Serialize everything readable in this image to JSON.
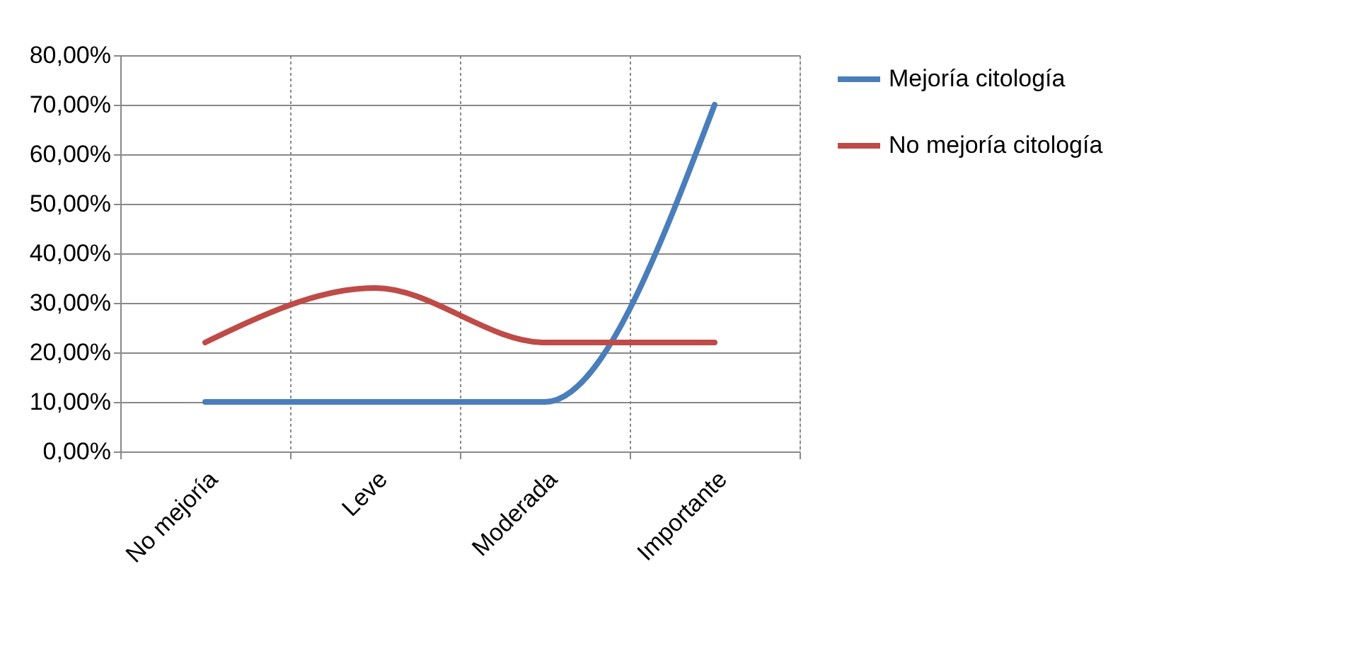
{
  "chart_data": {
    "type": "line",
    "categories": [
      "No mejoría",
      "Leve",
      "Moderada",
      "Importante"
    ],
    "series": [
      {
        "name": "Mejoría citología",
        "color": "#4a7ebb",
        "values": [
          10,
          10,
          10,
          70
        ]
      },
      {
        "name": "No mejoría citología",
        "color": "#be4b48",
        "values": [
          22,
          33,
          22,
          22
        ]
      }
    ],
    "ylim": [
      0,
      80
    ],
    "yticks": [
      {
        "value": 0,
        "label": "0,00%"
      },
      {
        "value": 10,
        "label": "10,00%"
      },
      {
        "value": 20,
        "label": "20,00%"
      },
      {
        "value": 30,
        "label": "30,00%"
      },
      {
        "value": 40,
        "label": "40,00%"
      },
      {
        "value": 50,
        "label": "50,00%"
      },
      {
        "value": 60,
        "label": "60,00%"
      },
      {
        "value": 70,
        "label": "70,00%"
      },
      {
        "value": 80,
        "label": "80,00%"
      }
    ],
    "grid": true,
    "legend": "right",
    "marker": "none",
    "line_style": "solid"
  }
}
